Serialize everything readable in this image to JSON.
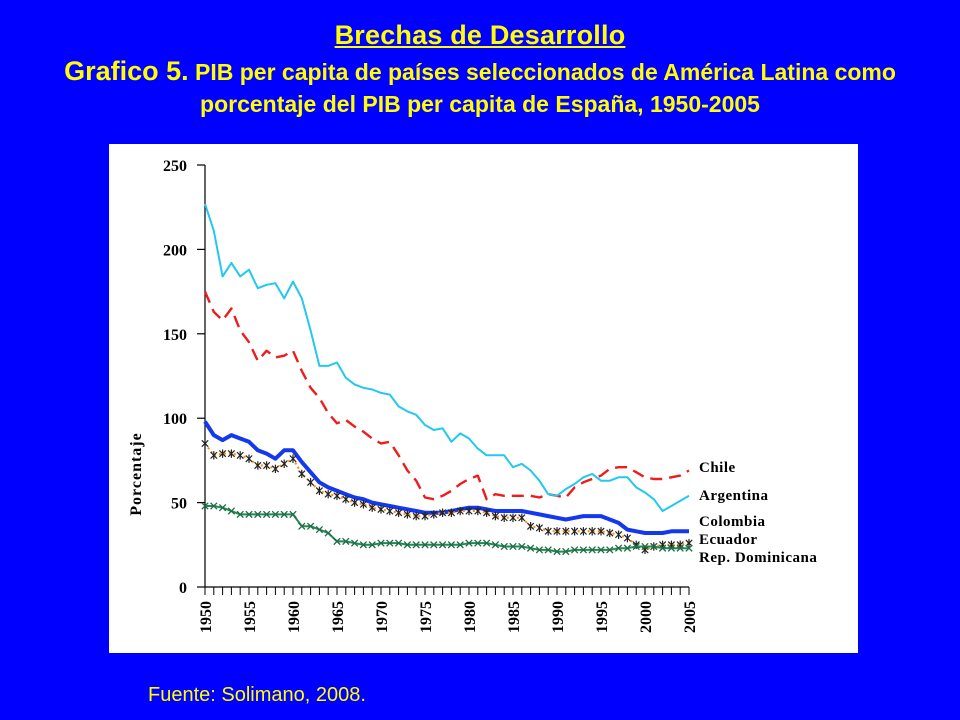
{
  "header": {
    "title": "Brechas de Desarrollo",
    "subtitle_lead": "Grafico 5.",
    "subtitle_rest": " PIB per capita de países seleccionados de América Latina como",
    "subtitle_line2": "porcentaje del PIB per capita de España, 1950-2005"
  },
  "footer": {
    "source": "Fuente: Solimano, 2008."
  },
  "chart_data": {
    "type": "line",
    "title": "Grafico 5. PIB per capita de países seleccionados de América Latina como porcentaje del PIB per capita de España, 1950-2005",
    "xlabel": "",
    "ylabel": "Porcentaje",
    "xlim": [
      1950,
      2005
    ],
    "ylim": [
      0,
      250
    ],
    "yticks": [
      0,
      50,
      100,
      150,
      200,
      250
    ],
    "xticks": [
      1950,
      1955,
      1960,
      1965,
      1970,
      1975,
      1980,
      1985,
      1990,
      1995,
      2000,
      2005
    ],
    "grid": false,
    "legend": "right, series labels at line ends",
    "x": [
      1950,
      1951,
      1952,
      1953,
      1954,
      1955,
      1956,
      1957,
      1958,
      1959,
      1960,
      1961,
      1962,
      1963,
      1964,
      1965,
      1966,
      1967,
      1968,
      1969,
      1970,
      1971,
      1972,
      1973,
      1974,
      1975,
      1976,
      1977,
      1978,
      1979,
      1980,
      1981,
      1982,
      1983,
      1984,
      1985,
      1986,
      1987,
      1988,
      1989,
      1990,
      1991,
      1992,
      1993,
      1994,
      1995,
      1996,
      1997,
      1998,
      1999,
      2000,
      2001,
      2002,
      2003,
      2004,
      2005
    ],
    "series": [
      {
        "name": "Chile",
        "color": "#ee1c1c",
        "style": "dashed",
        "values": [
          175,
          163,
          158,
          165,
          152,
          145,
          134,
          140,
          136,
          137,
          140,
          128,
          118,
          112,
          103,
          97,
          99,
          95,
          92,
          88,
          85,
          86,
          78,
          69,
          63,
          53,
          52,
          54,
          57,
          61,
          64,
          66,
          52,
          55,
          54,
          54,
          54,
          54,
          53,
          55,
          54,
          53,
          59,
          62,
          64,
          66,
          70,
          71,
          71,
          68,
          65,
          64,
          64,
          65,
          66,
          69
        ]
      },
      {
        "name": "Argentina",
        "color": "#22c8ee",
        "style": "solid",
        "values": [
          227,
          211,
          184,
          192,
          184,
          188,
          177,
          179,
          180,
          171,
          181,
          171,
          152,
          131,
          131,
          133,
          124,
          120,
          118,
          117,
          115,
          114,
          107,
          104,
          102,
          96,
          93,
          94,
          86,
          91,
          88,
          82,
          78,
          78,
          78,
          71,
          73,
          69,
          63,
          55,
          54,
          58,
          61,
          65,
          67,
          63,
          63,
          65,
          65,
          59,
          56,
          52,
          45,
          48,
          51,
          54
        ]
      },
      {
        "name": "Colombia",
        "color": "#1438ee",
        "style": "solid-thick",
        "values": [
          98,
          90,
          87,
          90,
          88,
          86,
          81,
          79,
          76,
          81,
          81,
          74,
          68,
          62,
          59,
          57,
          55,
          53,
          52,
          50,
          49,
          48,
          47,
          46,
          45,
          44,
          44,
          44,
          45,
          46,
          47,
          47,
          46,
          45,
          45,
          45,
          45,
          44,
          43,
          42,
          41,
          40,
          41,
          42,
          42,
          42,
          40,
          38,
          34,
          33,
          32,
          32,
          32,
          33,
          33,
          33
        ]
      },
      {
        "name": "Ecuador",
        "color": "#ff8c00",
        "style": "dotted-star",
        "values": [
          85,
          78,
          79,
          79,
          78,
          76,
          72,
          72,
          70,
          73,
          76,
          67,
          62,
          57,
          55,
          54,
          52,
          50,
          49,
          47,
          46,
          45,
          44,
          43,
          42,
          42,
          43,
          44,
          44,
          45,
          45,
          45,
          44,
          42,
          41,
          41,
          41,
          36,
          35,
          33,
          33,
          33,
          33,
          33,
          33,
          33,
          32,
          31,
          29,
          25,
          22,
          24,
          25,
          25,
          25,
          26
        ]
      },
      {
        "name": "Rep. Dominicana",
        "color": "#228855",
        "style": "solid-x",
        "values": [
          48,
          48,
          47,
          45,
          43,
          43,
          43,
          43,
          43,
          43,
          43,
          36,
          36,
          34,
          32,
          27,
          27,
          26,
          25,
          25,
          26,
          26,
          26,
          25,
          25,
          25,
          25,
          25,
          25,
          25,
          26,
          26,
          26,
          25,
          24,
          24,
          24,
          23,
          22,
          22,
          21,
          21,
          22,
          22,
          22,
          22,
          22,
          23,
          23,
          24,
          24,
          24,
          23,
          23,
          23,
          23
        ]
      }
    ]
  }
}
